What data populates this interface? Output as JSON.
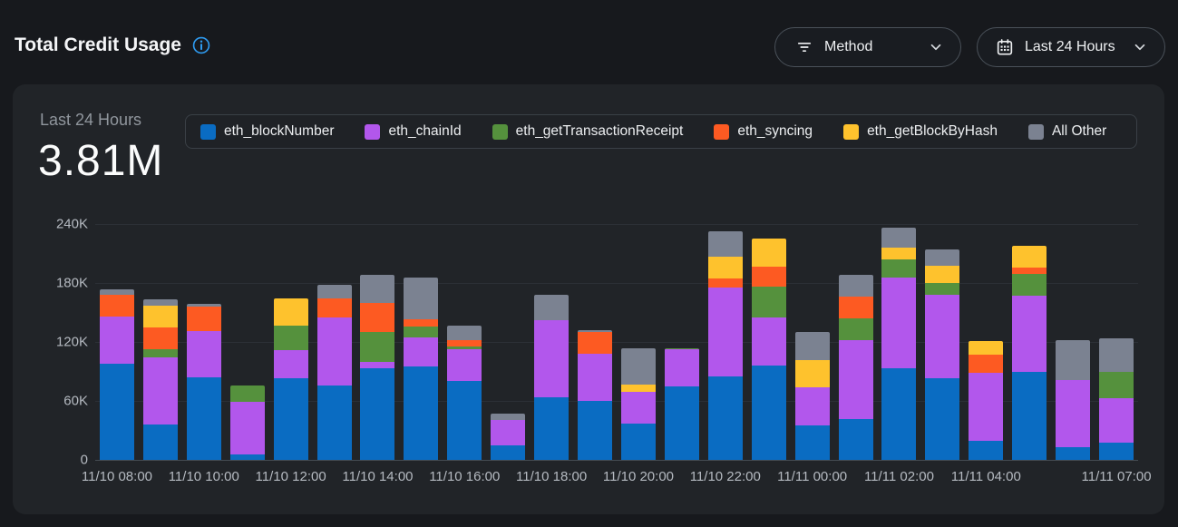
{
  "header": {
    "title": "Total Credit Usage",
    "filters": {
      "method_label": "Method",
      "range_label": "Last 24 Hours"
    }
  },
  "card": {
    "range_label": "Last 24 Hours",
    "total": "3.81M"
  },
  "colors": {
    "accent_blue": "#2e9bf0",
    "page_bg": "#17191d",
    "card_bg": "#212428"
  },
  "chart_data": {
    "type": "bar",
    "stacked": true,
    "title": "Total Credit Usage",
    "total_label": "3.81M",
    "ylim": [
      0,
      240000
    ],
    "grid": true,
    "legend_position": "top",
    "yticks": [
      {
        "value": 0,
        "label": "0"
      },
      {
        "value": 60000,
        "label": "60K"
      },
      {
        "value": 120000,
        "label": "120K"
      },
      {
        "value": 180000,
        "label": "180K"
      },
      {
        "value": 240000,
        "label": "240K"
      }
    ],
    "xticks": [
      {
        "index": 0,
        "label": "11/10 08:00"
      },
      {
        "index": 2,
        "label": "11/10 10:00"
      },
      {
        "index": 4,
        "label": "11/10 12:00"
      },
      {
        "index": 6,
        "label": "11/10 14:00"
      },
      {
        "index": 8,
        "label": "11/10 16:00"
      },
      {
        "index": 10,
        "label": "11/10 18:00"
      },
      {
        "index": 12,
        "label": "11/10 20:00"
      },
      {
        "index": 14,
        "label": "11/10 22:00"
      },
      {
        "index": 16,
        "label": "11/11 00:00"
      },
      {
        "index": 18,
        "label": "11/11 02:00"
      },
      {
        "index": 20,
        "label": "11/11 04:00"
      },
      {
        "index": 23,
        "label": "11/11 07:00"
      }
    ],
    "series": [
      {
        "name": "eth_blockNumber",
        "color": "#0a6cc2",
        "values": [
          98000,
          36000,
          84000,
          5500,
          83000,
          76000,
          93000,
          95000,
          80000,
          15000,
          64000,
          60000,
          37000,
          75000,
          85000,
          96000,
          35000,
          42000,
          93000,
          83000,
          19000,
          90000,
          13000,
          17500
        ]
      },
      {
        "name": "eth_chainId",
        "color": "#b257ec",
        "values": [
          48000,
          68000,
          47000,
          54000,
          29000,
          69000,
          7000,
          30000,
          33000,
          26000,
          78000,
          48000,
          32000,
          38000,
          90000,
          49000,
          39000,
          80000,
          93000,
          85000,
          70000,
          77000,
          68000,
          45000
        ]
      },
      {
        "name": "eth_getTransactionReceipt",
        "color": "#55913d",
        "values": [
          0,
          9000,
          0,
          16000,
          25000,
          0,
          30000,
          11000,
          2000,
          0,
          0,
          0,
          0,
          1000,
          0,
          31000,
          0,
          22000,
          18000,
          12000,
          0,
          22000,
          0,
          27000
        ]
      },
      {
        "name": "eth_syncing",
        "color": "#fd5a22",
        "values": [
          22000,
          22000,
          25000,
          0,
          0,
          19000,
          30000,
          7000,
          7000,
          0,
          0,
          22500,
          0,
          0,
          10000,
          21000,
          0,
          22000,
          0,
          0,
          18000,
          7000,
          0,
          0
        ]
      },
      {
        "name": "eth_getBlockByHash",
        "color": "#fec22d",
        "values": [
          0,
          22000,
          0,
          0,
          27000,
          0,
          0,
          0,
          0,
          0,
          0,
          0,
          8000,
          0,
          22000,
          28000,
          28000,
          0,
          12000,
          18000,
          14000,
          22000,
          0,
          0
        ]
      },
      {
        "name": "All Other",
        "color": "#7b8291",
        "values": [
          6000,
          6000,
          3000,
          0,
          0,
          14000,
          28000,
          43000,
          15000,
          6000,
          26000,
          1500,
          37000,
          0,
          26000,
          0,
          28000,
          22000,
          20000,
          16000,
          0,
          0,
          41000,
          34000
        ]
      }
    ]
  }
}
